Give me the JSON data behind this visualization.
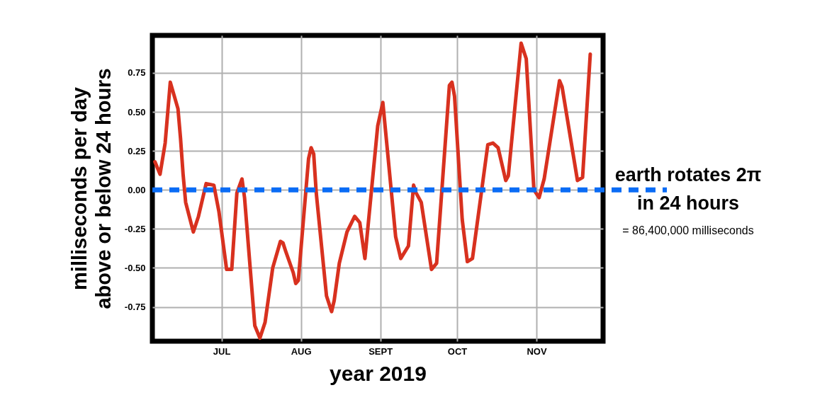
{
  "chart_data": {
    "type": "line",
    "xlabel": "year 2019",
    "ylabel": "milliseconds per day above or below 24 hours",
    "x": [
      "2019-06-05",
      "2019-06-07",
      "2019-06-09",
      "2019-06-11",
      "2019-06-14",
      "2019-06-15",
      "2019-06-16",
      "2019-06-17",
      "2019-06-20",
      "2019-06-22",
      "2019-06-25",
      "2019-06-28",
      "2019-06-30",
      "2019-07-03",
      "2019-07-05",
      "2019-07-07",
      "2019-07-09",
      "2019-07-10",
      "2019-07-14",
      "2019-07-16",
      "2019-07-18",
      "2019-07-21",
      "2019-07-24",
      "2019-07-25",
      "2019-07-26",
      "2019-07-29",
      "2019-07-30",
      "2019-07-31",
      "2019-08-04",
      "2019-08-05",
      "2019-08-06",
      "2019-08-07",
      "2019-08-11",
      "2019-08-13",
      "2019-08-14",
      "2019-08-16",
      "2019-08-19",
      "2019-08-22",
      "2019-08-24",
      "2019-08-26",
      "2019-08-31",
      "2019-09-02",
      "2019-09-07",
      "2019-09-09",
      "2019-09-12",
      "2019-09-14",
      "2019-09-15",
      "2019-09-17",
      "2019-09-21",
      "2019-09-23",
      "2019-09-28",
      "2019-09-29",
      "2019-09-30",
      "2019-10-03",
      "2019-10-05",
      "2019-10-07",
      "2019-10-13",
      "2019-10-15",
      "2019-10-17",
      "2019-10-20",
      "2019-10-21",
      "2019-10-26",
      "2019-10-28",
      "2019-10-31",
      "2019-11-02",
      "2019-11-04",
      "2019-11-10",
      "2019-11-11",
      "2019-11-17",
      "2019-11-19",
      "2019-11-22"
    ],
    "series": [
      {
        "color": "#d8311f",
        "values": [
          0.18,
          0.1,
          0.3,
          0.69,
          0.52,
          0.33,
          0.1,
          -0.08,
          -0.27,
          -0.17,
          0.04,
          0.03,
          -0.14,
          -0.51,
          -0.51,
          -0.02,
          0.07,
          -0.05,
          -0.87,
          -0.95,
          -0.85,
          -0.5,
          -0.33,
          -0.34,
          -0.39,
          -0.53,
          -0.6,
          -0.58,
          0.2,
          0.27,
          0.23,
          -0.02,
          -0.68,
          -0.78,
          -0.71,
          -0.47,
          -0.27,
          -0.17,
          -0.21,
          -0.44,
          0.41,
          0.56,
          -0.3,
          -0.44,
          -0.36,
          0.03,
          -0.02,
          -0.08,
          -0.51,
          -0.47,
          0.67,
          0.69,
          0.6,
          -0.19,
          -0.46,
          -0.44,
          0.29,
          0.3,
          0.27,
          0.06,
          0.09,
          0.94,
          0.84,
          0,
          -0.05,
          0.07,
          0.7,
          0.66,
          0.06,
          0.08,
          0.87
        ]
      }
    ],
    "xlim": [
      "2019-06-04",
      "2019-11-27"
    ],
    "xticks": [
      {
        "value": "2019-07-01",
        "label": "JUL"
      },
      {
        "value": "2019-08-01",
        "label": "AUG"
      },
      {
        "value": "2019-09-01",
        "label": "SEPT"
      },
      {
        "value": "2019-10-01",
        "label": "OCT"
      },
      {
        "value": "2019-11-01",
        "label": "NOV"
      }
    ],
    "ylim": [
      -0.97,
      0.99
    ],
    "yticks": [
      -0.75,
      {
        "value": -0.5,
        "label": "-0.50"
      },
      -0.25,
      {
        "value": 0,
        "label": "0.00"
      },
      0.25,
      {
        "value": 0.5,
        "label": "0.50"
      },
      0.75
    ],
    "ref_lines": [
      {
        "axis": "y",
        "value": 0,
        "label": "earth rotates 2π in 24 hours",
        "color": "#0a6cf5",
        "line_style": "dashed"
      }
    ],
    "annotations": [
      "= 86,400,000 milliseconds"
    ],
    "grid": true,
    "marker": "none",
    "line_style": "solid"
  }
}
